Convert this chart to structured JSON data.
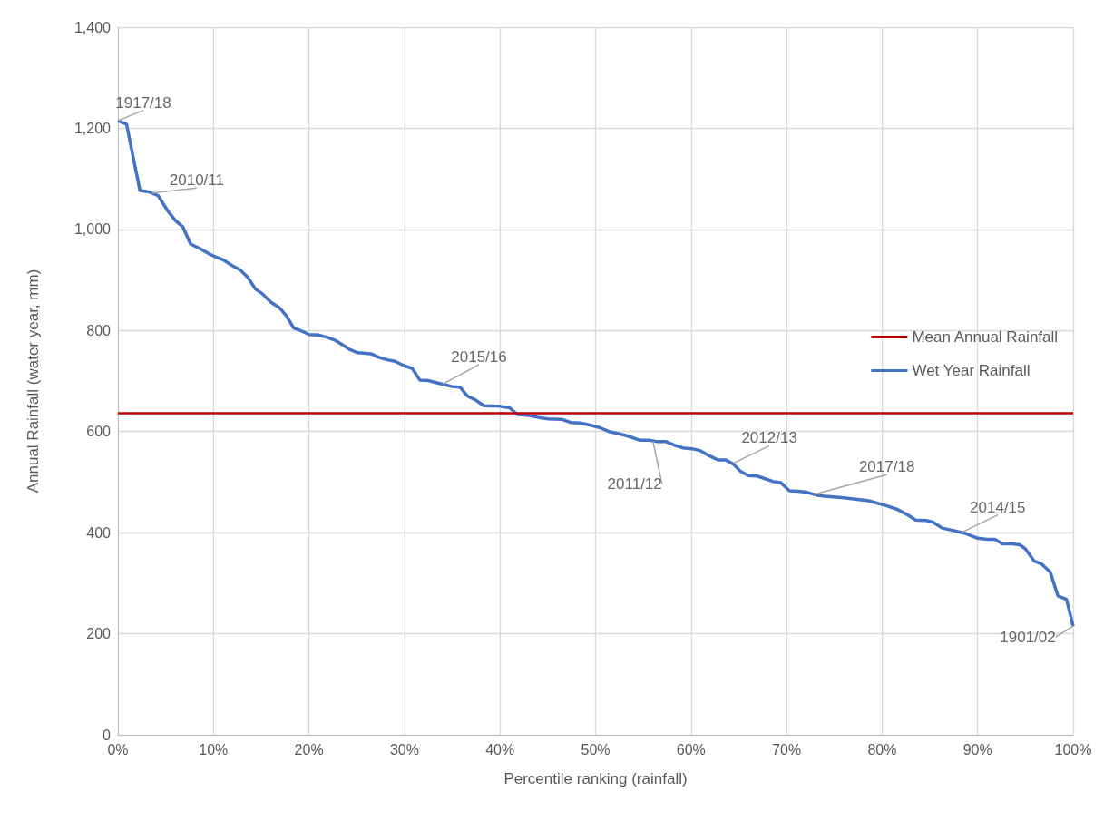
{
  "chart_data": {
    "type": "line",
    "xlabel": "Percentile ranking (rainfall)",
    "ylabel": "Annual Rainfall (water year, mm)",
    "xlim": [
      0,
      100
    ],
    "ylim": [
      0,
      1400
    ],
    "xticks": [
      {
        "value": 0,
        "label": "0%"
      },
      {
        "value": 10,
        "label": "10%"
      },
      {
        "value": 20,
        "label": "20%"
      },
      {
        "value": 30,
        "label": "30%"
      },
      {
        "value": 40,
        "label": "40%"
      },
      {
        "value": 50,
        "label": "50%"
      },
      {
        "value": 60,
        "label": "60%"
      },
      {
        "value": 70,
        "label": "70%"
      },
      {
        "value": 80,
        "label": "80%"
      },
      {
        "value": 90,
        "label": "90%"
      },
      {
        "value": 100,
        "label": "100%"
      }
    ],
    "yticks": [
      0,
      200,
      400,
      600,
      800,
      {
        "value": 1000,
        "label": "1,000"
      },
      {
        "value": 1200,
        "label": "1,200"
      },
      {
        "value": 1400,
        "label": "1,400"
      }
    ],
    "grid": true,
    "legend": "right",
    "marker": "none",
    "line_style": "solid",
    "series": [
      {
        "name": "Wet Year Rainfall",
        "color": "#4472c4",
        "x": [
          0,
          0.9,
          2.3,
          3.3,
          4.2,
          5.2,
          6.0,
          6.8,
          7.6,
          8.5,
          9.5,
          10.3,
          11.0,
          12.0,
          12.8,
          13.6,
          14.4,
          15.1,
          16.0,
          16.9,
          17.6,
          18.4,
          19.1,
          20.0,
          21.0,
          22.0,
          22.8,
          23.5,
          24.3,
          25.1,
          26.5,
          27.3,
          28.2,
          29.0,
          30.0,
          30.8,
          31.6,
          32.5,
          33.5,
          34.4,
          35.0,
          35.8,
          36.6,
          37.4,
          38.3,
          40.0,
          41.0,
          41.8,
          43.0,
          44.0,
          45.0,
          46.5,
          47.4,
          48.4,
          49.4,
          50.4,
          51.4,
          52.4,
          53.4,
          54.6,
          55.6,
          56.5,
          57.4,
          58.4,
          59.3,
          60.1,
          61.0,
          61.9,
          62.8,
          63.6,
          64.4,
          65.2,
          66.0,
          66.9,
          67.7,
          68.6,
          69.4,
          70.3,
          71.2,
          72.1,
          73.2,
          74.0,
          76.0,
          78.6,
          80.5,
          81.6,
          82.6,
          83.5,
          84.6,
          85.3,
          86.3,
          87.5,
          88.8,
          90.0,
          91.0,
          91.8,
          92.6,
          93.6,
          94.4,
          95.0,
          95.9,
          96.7,
          97.6,
          98.4,
          99.3,
          100
        ],
        "values": [
          1215,
          1208,
          1077,
          1074,
          1067,
          1037,
          1018,
          1005,
          971,
          963,
          952,
          945,
          940,
          928,
          920,
          905,
          882,
          873,
          856,
          845,
          830,
          805,
          800,
          792,
          791,
          786,
          780,
          772,
          762,
          756,
          754,
          747,
          742,
          739,
          730,
          725,
          702,
          701,
          696,
          692,
          689,
          688,
          670,
          663,
          651,
          650,
          647,
          634,
          632,
          628,
          625,
          624,
          618,
          617,
          613,
          608,
          600,
          596,
          591,
          583,
          583,
          580,
          580,
          572,
          567,
          566,
          562,
          552,
          544,
          544,
          536,
          521,
          513,
          512,
          507,
          501,
          499,
          483,
          482,
          480,
          474,
          472,
          469,
          463,
          453,
          446,
          436,
          425,
          424,
          421,
          409,
          404,
          398,
          389,
          387,
          387,
          378,
          378,
          376,
          368,
          344,
          338,
          322,
          275,
          268,
          215
        ]
      }
    ],
    "ref_lines": [
      {
        "axis": "y",
        "value": 636,
        "label": "Mean Annual Rainfall",
        "color": "#c00000"
      }
    ],
    "annotations": [
      {
        "text": "1917/18",
        "x": 0,
        "y": 1215
      },
      {
        "text": "2010/11",
        "x": 3.5,
        "y": 1072
      },
      {
        "text": "2015/16",
        "x": 34,
        "y": 694
      },
      {
        "text": "2011/12",
        "x": 56,
        "y": 582
      },
      {
        "text": "2012/13",
        "x": 64.4,
        "y": 537
      },
      {
        "text": "2017/18",
        "x": 72.9,
        "y": 476
      },
      {
        "text": "2014/15",
        "x": 88.3,
        "y": 400
      },
      {
        "text": "1901/02",
        "x": 100,
        "y": 215
      }
    ]
  }
}
